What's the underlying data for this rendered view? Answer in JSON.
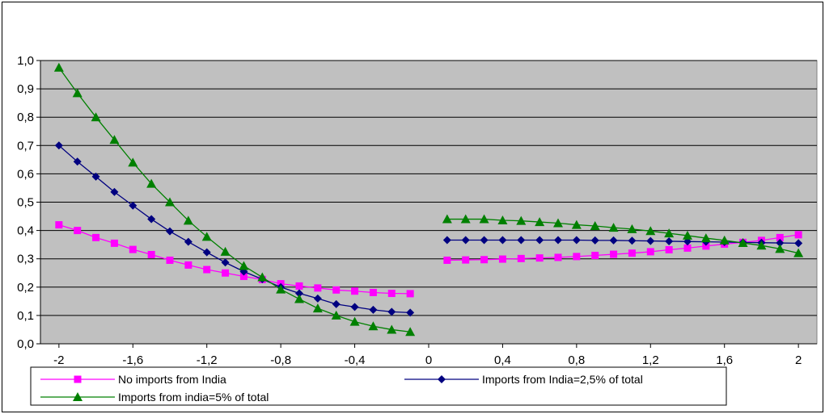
{
  "chart_data": {
    "type": "line",
    "title": "",
    "xlabel": "",
    "ylabel": "",
    "xlim": [
      -2.1,
      2.1
    ],
    "ylim": [
      0,
      1.0
    ],
    "grid": "horizontal",
    "plot_background": "#c0c0c0",
    "x_ticks": [
      "-2",
      "-1,6",
      "-1,2",
      "-0,8",
      "-0,4",
      "0",
      "0,4",
      "0,8",
      "1,2",
      "1,6",
      "2"
    ],
    "x_tick_values": [
      -2,
      -1.6,
      -1.2,
      -0.8,
      -0.4,
      0,
      0.4,
      0.8,
      1.2,
      1.6,
      2
    ],
    "y_ticks": [
      "0,0",
      "0,1",
      "0,2",
      "0,3",
      "0,4",
      "0,5",
      "0,6",
      "0,7",
      "0,8",
      "0,9",
      "1,0"
    ],
    "y_tick_values": [
      0,
      0.1,
      0.2,
      0.3,
      0.4,
      0.5,
      0.6,
      0.7,
      0.8,
      0.9,
      1.0
    ],
    "legend_position": "bottom",
    "series": [
      {
        "name": "No  imports from India",
        "color": "#ff00ff",
        "marker": "square",
        "segments": [
          {
            "x": [
              -2.0,
              -1.9,
              -1.8,
              -1.7,
              -1.6,
              -1.5,
              -1.4,
              -1.3,
              -1.2,
              -1.1,
              -1.0,
              -0.9,
              -0.8,
              -0.7,
              -0.6,
              -0.5,
              -0.4,
              -0.3,
              -0.2,
              -0.1
            ],
            "y": [
              0.42,
              0.4,
              0.375,
              0.355,
              0.333,
              0.315,
              0.295,
              0.278,
              0.262,
              0.25,
              0.238,
              0.227,
              0.212,
              0.204,
              0.197,
              0.19,
              0.186,
              0.181,
              0.178,
              0.177
            ]
          },
          {
            "x": [
              0.1,
              0.2,
              0.3,
              0.4,
              0.5,
              0.6,
              0.7,
              0.8,
              0.9,
              1.0,
              1.1,
              1.2,
              1.3,
              1.4,
              1.5,
              1.6,
              1.7,
              1.8,
              1.9,
              2.0
            ],
            "y": [
              0.295,
              0.296,
              0.297,
              0.299,
              0.301,
              0.303,
              0.305,
              0.308,
              0.312,
              0.316,
              0.32,
              0.325,
              0.332,
              0.338,
              0.345,
              0.352,
              0.358,
              0.365,
              0.375,
              0.385
            ]
          }
        ]
      },
      {
        "name": "Imports from India=2,5% of total",
        "color": "#000080",
        "marker": "diamond",
        "segments": [
          {
            "x": [
              -2.0,
              -1.9,
              -1.8,
              -1.7,
              -1.6,
              -1.5,
              -1.4,
              -1.3,
              -1.2,
              -1.1,
              -1.0,
              -0.9,
              -0.8,
              -0.7,
              -0.6,
              -0.5,
              -0.4,
              -0.3,
              -0.2,
              -0.1
            ],
            "y": [
              0.7,
              0.643,
              0.59,
              0.536,
              0.488,
              0.44,
              0.397,
              0.36,
              0.323,
              0.287,
              0.255,
              0.228,
              0.2,
              0.178,
              0.16,
              0.14,
              0.13,
              0.12,
              0.113,
              0.11
            ]
          },
          {
            "x": [
              0.1,
              0.2,
              0.3,
              0.4,
              0.5,
              0.6,
              0.7,
              0.8,
              0.9,
              1.0,
              1.1,
              1.2,
              1.3,
              1.4,
              1.5,
              1.6,
              1.7,
              1.8,
              1.9,
              2.0
            ],
            "y": [
              0.366,
              0.366,
              0.366,
              0.366,
              0.366,
              0.366,
              0.366,
              0.366,
              0.365,
              0.365,
              0.364,
              0.363,
              0.362,
              0.361,
              0.36,
              0.359,
              0.358,
              0.357,
              0.356,
              0.355
            ]
          }
        ]
      },
      {
        "name": "Imports from india=5% of total",
        "color": "#008000",
        "marker": "triangle",
        "segments": [
          {
            "x": [
              -2.0,
              -1.9,
              -1.8,
              -1.7,
              -1.6,
              -1.5,
              -1.4,
              -1.3,
              -1.2,
              -1.1,
              -1.0,
              -0.9,
              -0.8,
              -0.7,
              -0.6,
              -0.5,
              -0.4,
              -0.3,
              -0.2,
              -0.1
            ],
            "y": [
              0.975,
              0.885,
              0.8,
              0.72,
              0.64,
              0.565,
              0.5,
              0.435,
              0.378,
              0.325,
              0.275,
              0.235,
              0.192,
              0.158,
              0.125,
              0.1,
              0.078,
              0.062,
              0.05,
              0.042
            ]
          },
          {
            "x": [
              0.1,
              0.2,
              0.3,
              0.4,
              0.5,
              0.6,
              0.7,
              0.8,
              0.9,
              1.0,
              1.1,
              1.2,
              1.3,
              1.4,
              1.5,
              1.6,
              1.7,
              1.8,
              1.9,
              2.0
            ],
            "y": [
              0.44,
              0.44,
              0.44,
              0.436,
              0.434,
              0.43,
              0.426,
              0.42,
              0.416,
              0.41,
              0.405,
              0.398,
              0.39,
              0.382,
              0.373,
              0.365,
              0.356,
              0.347,
              0.335,
              0.32
            ]
          }
        ]
      }
    ]
  }
}
